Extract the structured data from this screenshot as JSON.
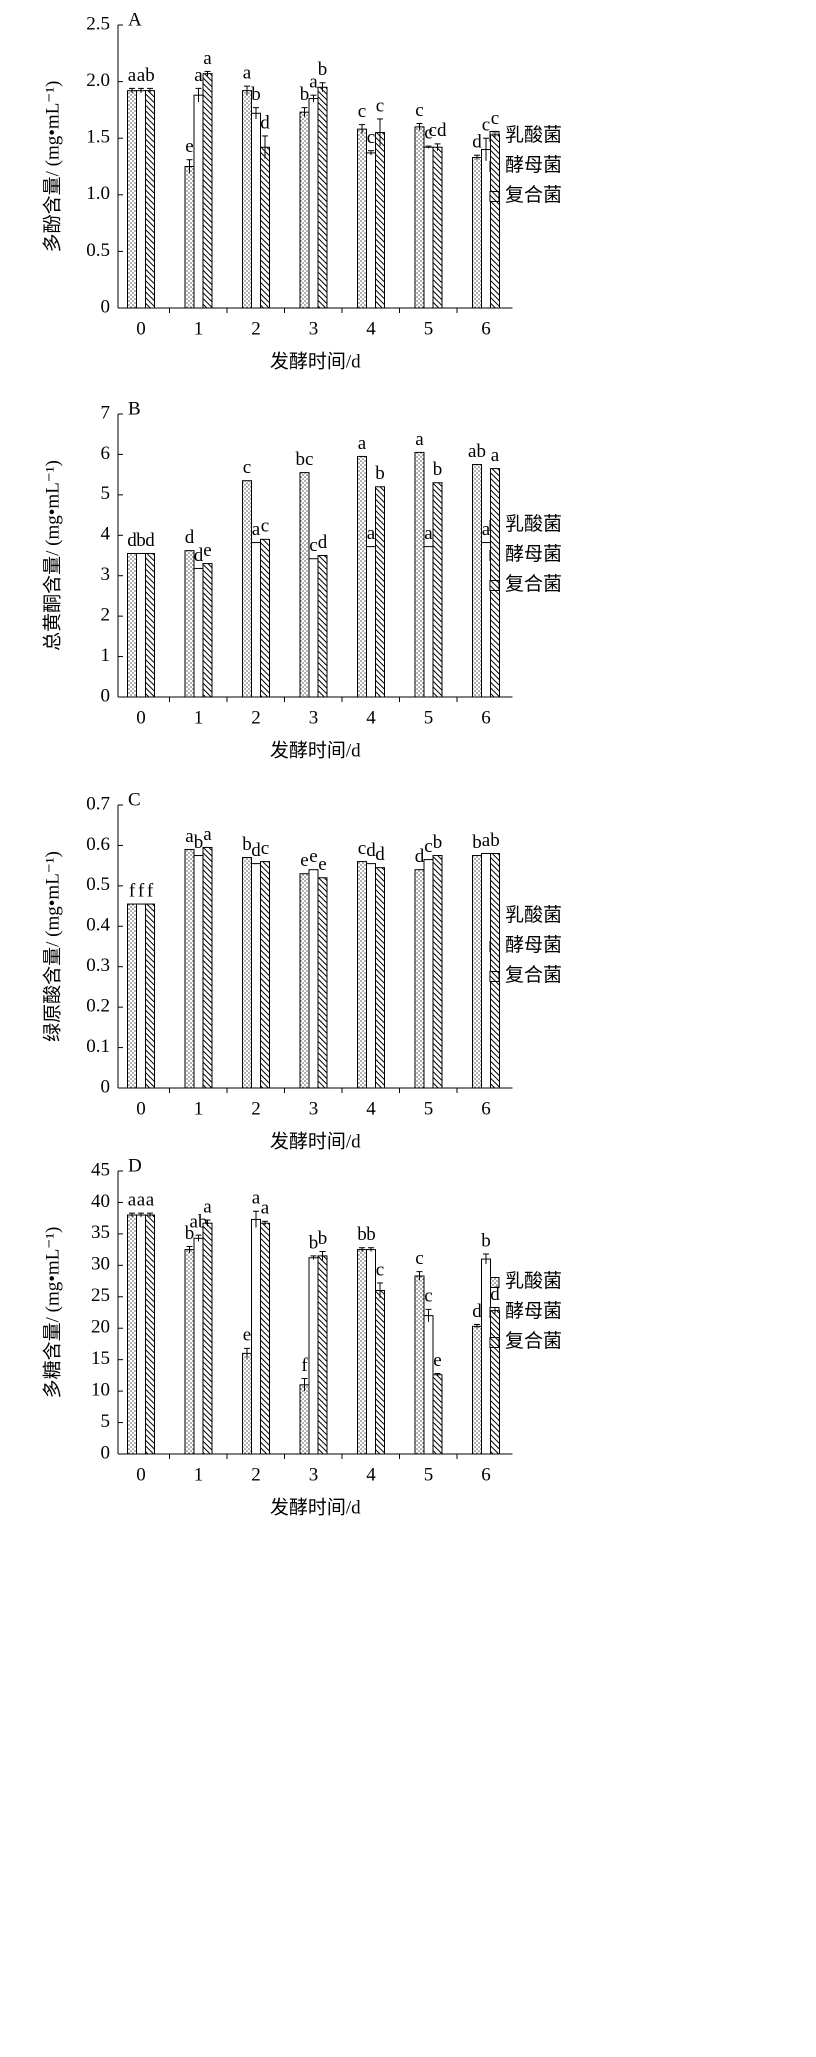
{
  "chart_data": [
    {
      "type": "bar",
      "panel_label": "A",
      "x_label": "发酵时间/d",
      "y_label": "多酚含量/ (mg•mL⁻¹)",
      "categories": [
        "0",
        "1",
        "2",
        "3",
        "4",
        "5",
        "6"
      ],
      "ylim": [
        0,
        2.5
      ],
      "yticks": [
        0,
        0.5,
        {
          "value": 1,
          "label": "1.0"
        },
        1.5,
        {
          "value": 2,
          "label": "2.0"
        },
        2.5
      ],
      "series": [
        {
          "name": "乳酸菌",
          "color": "#000000",
          "pattern": "dots",
          "values": [
            1.92,
            1.25,
            1.92,
            1.73,
            1.58,
            1.6,
            1.33
          ],
          "errors": [
            0.02,
            0.06,
            0.04,
            0.04,
            0.04,
            0.03,
            0.02
          ],
          "labels": [
            "a",
            "e",
            "a",
            "b",
            "c",
            "c",
            "d"
          ]
        },
        {
          "name": "酵母菌",
          "color": "#000000",
          "pattern": "none",
          "values": [
            1.92,
            1.88,
            1.72,
            1.85,
            1.37,
            1.42,
            1.4
          ],
          "errors": [
            0.02,
            0.06,
            0.05,
            0.03,
            0.02,
            0.01,
            0.1
          ],
          "labels": [
            "a",
            "a",
            "b",
            "a",
            "c",
            "c",
            "c"
          ]
        },
        {
          "name": "复合菌",
          "color": "#000000",
          "pattern": "hatch",
          "values": [
            1.92,
            2.07,
            1.42,
            1.95,
            1.55,
            1.42,
            1.53
          ],
          "errors": [
            0.02,
            0.02,
            0.1,
            0.04,
            0.12,
            0.03,
            0.03
          ],
          "labels": [
            "b",
            "a",
            "d",
            "b",
            "c",
            "cd",
            "c"
          ]
        }
      ]
    },
    {
      "type": "bar",
      "panel_label": "B",
      "x_label": "发酵时间/d",
      "y_label": "总黄酮含量/ (mg•mL⁻¹)",
      "categories": [
        "0",
        "1",
        "2",
        "3",
        "4",
        "5",
        "6"
      ],
      "ylim": [
        0,
        7
      ],
      "yticks": [
        0,
        1,
        2,
        3,
        4,
        5,
        6,
        7
      ],
      "series": [
        {
          "name": "乳酸菌",
          "color": "#000000",
          "pattern": "dots",
          "values": [
            3.55,
            3.62,
            5.35,
            5.55,
            5.95,
            6.05,
            5.75
          ],
          "labels": [
            "d",
            "d",
            "c",
            "bc",
            "a",
            "a",
            "ab"
          ]
        },
        {
          "name": "酵母菌",
          "color": "#000000",
          "pattern": "none",
          "values": [
            3.55,
            3.18,
            3.82,
            3.42,
            3.72,
            3.72,
            3.82
          ],
          "labels": [
            "b",
            "d",
            "a",
            "c",
            "a",
            "a",
            "a"
          ]
        },
        {
          "name": "复合菌",
          "color": "#000000",
          "pattern": "hatch",
          "values": [
            3.55,
            3.3,
            3.9,
            3.5,
            5.2,
            5.3,
            5.65
          ],
          "labels": [
            "d",
            "e",
            "c",
            "d",
            "b",
            "b",
            "a"
          ]
        }
      ]
    },
    {
      "type": "bar",
      "panel_label": "C",
      "x_label": "发酵时间/d",
      "y_label": "绿原酸含量/ (mg•mL⁻¹)",
      "categories": [
        "0",
        "1",
        "2",
        "3",
        "4",
        "5",
        "6"
      ],
      "ylim": [
        0,
        0.7
      ],
      "yticks": [
        0,
        0.1,
        0.2,
        0.3,
        0.4,
        0.5,
        0.6,
        0.7
      ],
      "series": [
        {
          "name": "乳酸菌",
          "color": "#000000",
          "pattern": "dots",
          "values": [
            0.455,
            0.59,
            0.57,
            0.53,
            0.56,
            0.54,
            0.575
          ],
          "labels": [
            "f",
            "a",
            "b",
            "e",
            "c",
            "d",
            "b"
          ]
        },
        {
          "name": "酵母菌",
          "color": "#000000",
          "pattern": "none",
          "values": [
            0.455,
            0.575,
            0.555,
            0.54,
            0.555,
            0.565,
            0.58
          ],
          "labels": [
            "f",
            "b",
            "d",
            "e",
            "d",
            "c",
            "a"
          ]
        },
        {
          "name": "复合菌",
          "color": "#000000",
          "pattern": "hatch",
          "values": [
            0.455,
            0.595,
            0.56,
            0.52,
            0.545,
            0.575,
            0.58
          ],
          "labels": [
            "f",
            "a",
            "c",
            "e",
            "d",
            "b",
            "b"
          ]
        }
      ]
    },
    {
      "type": "bar",
      "panel_label": "D",
      "x_label": "发酵时间/d",
      "y_label": "多糖含量/ (mg•mL⁻¹)",
      "categories": [
        "0",
        "1",
        "2",
        "3",
        "4",
        "5",
        "6"
      ],
      "ylim": [
        0,
        45
      ],
      "yticks": [
        0,
        5,
        10,
        15,
        20,
        25,
        30,
        35,
        40,
        45
      ],
      "series": [
        {
          "name": "乳酸菌",
          "color": "#000000",
          "pattern": "dots",
          "values": [
            38,
            32.5,
            16,
            11,
            32.5,
            28.3,
            20.3
          ],
          "errors": [
            0.3,
            0.5,
            0.8,
            1,
            0.3,
            0.7,
            0.3
          ],
          "labels": [
            "a",
            "b",
            "e",
            "f",
            "b",
            "c",
            "d"
          ]
        },
        {
          "name": "酵母菌",
          "color": "#000000",
          "pattern": "none",
          "values": [
            38,
            34.3,
            37.3,
            31.2,
            32.5,
            22,
            31
          ],
          "errors": [
            0.3,
            0.5,
            1.3,
            0.3,
            0.3,
            1,
            0.8
          ],
          "labels": [
            "a",
            "ab",
            "a",
            "b",
            "b",
            "c",
            "b"
          ]
        },
        {
          "name": "复合菌",
          "color": "#000000",
          "pattern": "hatch",
          "values": [
            38,
            36.7,
            36.7,
            31.5,
            26,
            12.6,
            22.8
          ],
          "errors": [
            0.3,
            0.5,
            0.3,
            0.7,
            1.2,
            0.2,
            0.5
          ],
          "labels": [
            "a",
            "a",
            "a",
            "b",
            "c",
            "e",
            "d"
          ]
        }
      ]
    }
  ]
}
